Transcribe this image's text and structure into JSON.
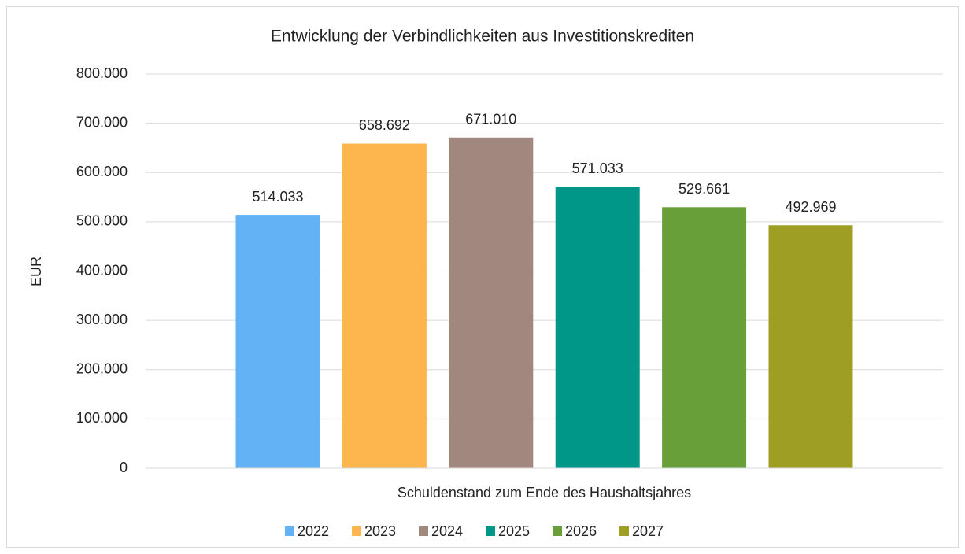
{
  "chart_data": {
    "type": "bar",
    "title": "Entwicklung der Verbindlichkeiten aus Investitionskrediten",
    "y_label": "EUR",
    "categories": [
      "Schuldenstand zum Ende des Haushaltsjahres"
    ],
    "series": [
      {
        "name": "2022",
        "color": "#63b2f5",
        "values": [
          514033
        ],
        "value_labels": [
          "514.033"
        ]
      },
      {
        "name": "2023",
        "color": "#fdb54d",
        "values": [
          658692
        ],
        "value_labels": [
          "658.692"
        ]
      },
      {
        "name": "2024",
        "color": "#a1887f",
        "values": [
          671010
        ],
        "value_labels": [
          "671.010"
        ]
      },
      {
        "name": "2025",
        "color": "#009688",
        "values": [
          571033
        ],
        "value_labels": [
          "571.033"
        ]
      },
      {
        "name": "2026",
        "color": "#689f38",
        "values": [
          529661
        ],
        "value_labels": [
          "529.661"
        ]
      },
      {
        "name": "2027",
        "color": "#9e9d24",
        "values": [
          492969
        ],
        "value_labels": [
          "492.969"
        ]
      }
    ],
    "ylim": [
      0,
      800000
    ],
    "yticks": [
      0,
      {
        "value": 100000,
        "label": "100.000"
      },
      {
        "value": 200000,
        "label": "200.000"
      },
      {
        "value": 300000,
        "label": "300.000"
      },
      {
        "value": 400000,
        "label": "400.000"
      },
      {
        "value": 500000,
        "label": "500.000"
      },
      {
        "value": 600000,
        "label": "600.000"
      },
      {
        "value": 700000,
        "label": "700.000"
      },
      {
        "value": 800000,
        "label": "800.000"
      }
    ],
    "grid": true,
    "legend": "bottom"
  }
}
